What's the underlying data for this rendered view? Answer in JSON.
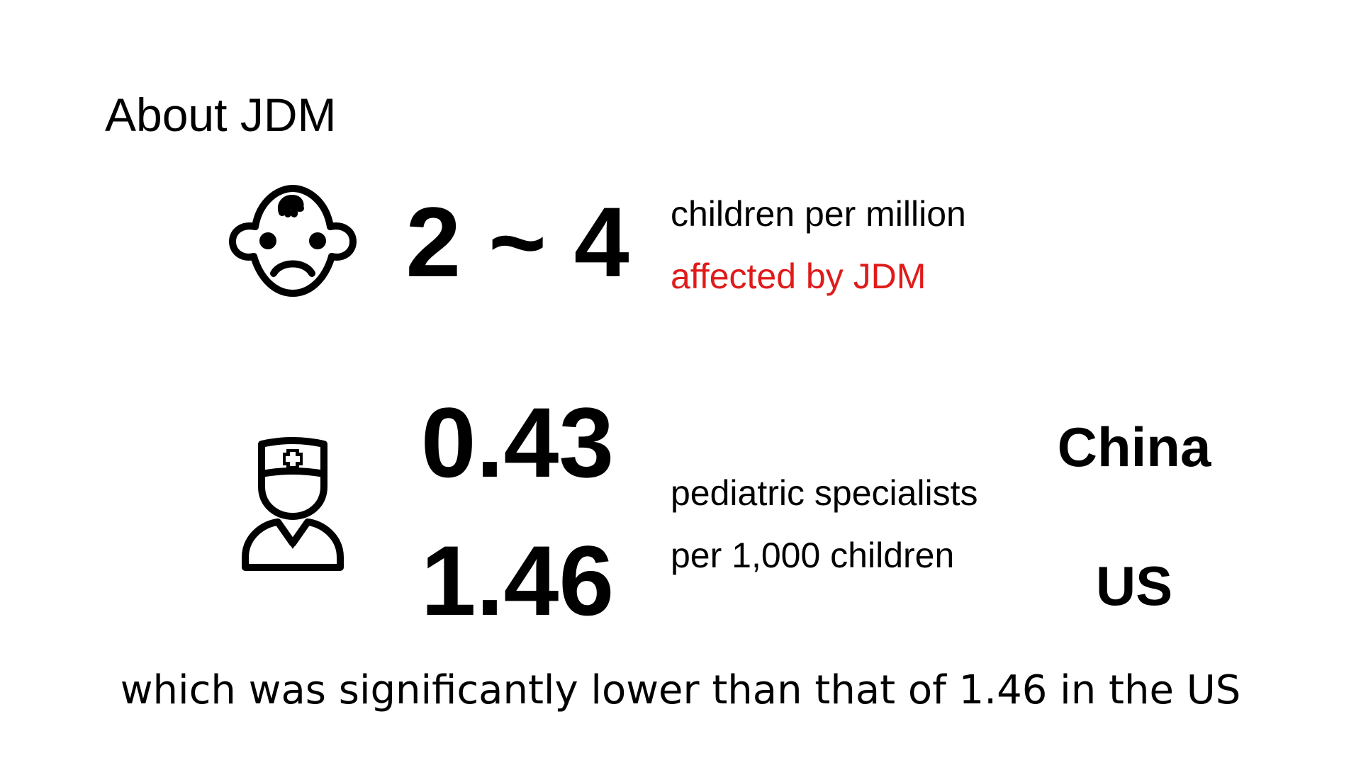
{
  "slide": {
    "title": "About JDM",
    "incidence": {
      "icon": "baby-sad-face-icon",
      "value": "2 ~ 4",
      "line1": "children per million",
      "line2": "affected by JDM",
      "line2_color": "#e01b1b"
    },
    "specialists": {
      "icon": "doctor-icon",
      "china_value": "0.43",
      "us_value": "1.46",
      "line1": "pediatric specialists",
      "line2": "per 1,000 children",
      "china_label": "China",
      "us_label": "US"
    },
    "footer": "which was significantly lower than that of 1.46 in the US"
  }
}
